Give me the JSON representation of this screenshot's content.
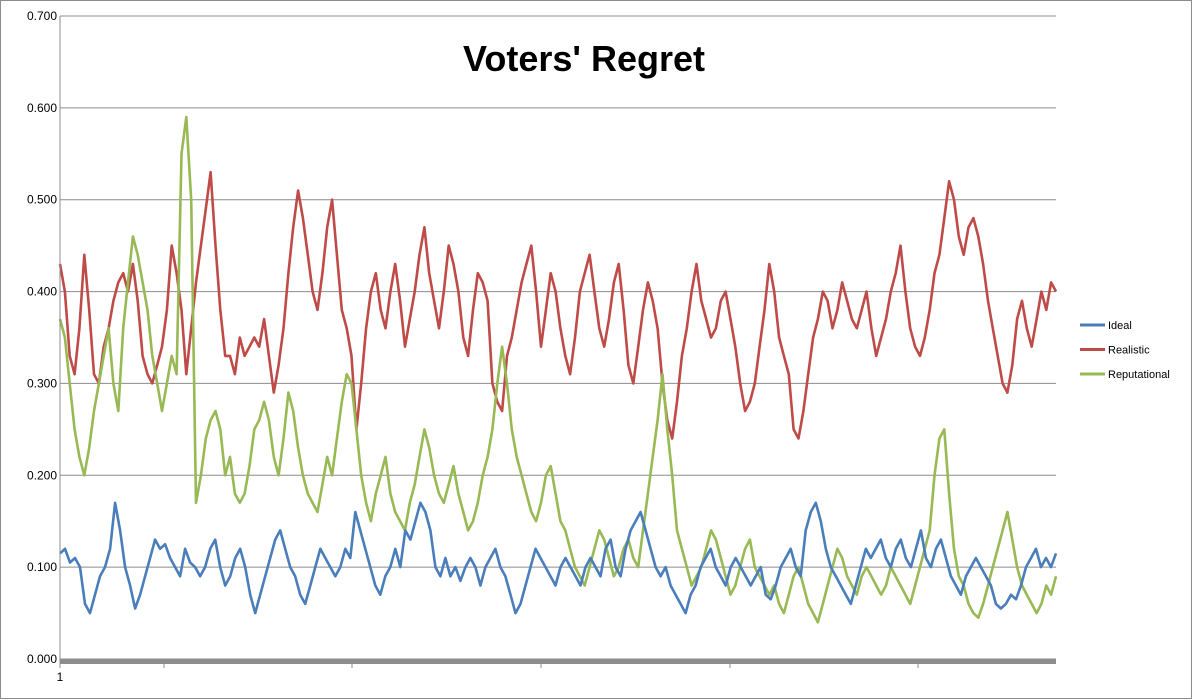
{
  "chart_data": {
    "type": "line",
    "title": "Voters' Regret",
    "xlabel": "",
    "ylabel": "",
    "ylim": [
      0,
      0.7
    ],
    "yticks": [
      "0.000",
      "0.100",
      "0.200",
      "0.300",
      "0.400",
      "0.500",
      "0.600",
      "0.700"
    ],
    "x_first_label": "1",
    "grid": "horizontal",
    "legend_position": "right",
    "n_points": 200,
    "series": [
      {
        "name": "Ideal",
        "color": "#4a7ebb",
        "values": [
          0.115,
          0.12,
          0.105,
          0.11,
          0.1,
          0.06,
          0.05,
          0.07,
          0.09,
          0.1,
          0.12,
          0.17,
          0.14,
          0.1,
          0.08,
          0.055,
          0.07,
          0.09,
          0.11,
          0.13,
          0.12,
          0.125,
          0.11,
          0.1,
          0.09,
          0.12,
          0.105,
          0.1,
          0.09,
          0.1,
          0.12,
          0.13,
          0.1,
          0.08,
          0.09,
          0.11,
          0.12,
          0.1,
          0.07,
          0.05,
          0.07,
          0.09,
          0.11,
          0.13,
          0.14,
          0.12,
          0.1,
          0.09,
          0.07,
          0.06,
          0.08,
          0.1,
          0.12,
          0.11,
          0.1,
          0.09,
          0.1,
          0.12,
          0.11,
          0.16,
          0.14,
          0.12,
          0.1,
          0.08,
          0.07,
          0.09,
          0.1,
          0.12,
          0.1,
          0.14,
          0.13,
          0.15,
          0.17,
          0.16,
          0.14,
          0.1,
          0.09,
          0.11,
          0.09,
          0.1,
          0.085,
          0.1,
          0.11,
          0.1,
          0.08,
          0.1,
          0.11,
          0.12,
          0.1,
          0.09,
          0.07,
          0.05,
          0.06,
          0.08,
          0.1,
          0.12,
          0.11,
          0.1,
          0.09,
          0.08,
          0.1,
          0.11,
          0.1,
          0.09,
          0.08,
          0.1,
          0.11,
          0.1,
          0.09,
          0.12,
          0.13,
          0.1,
          0.09,
          0.12,
          0.14,
          0.15,
          0.16,
          0.14,
          0.12,
          0.1,
          0.09,
          0.1,
          0.08,
          0.07,
          0.06,
          0.05,
          0.07,
          0.08,
          0.1,
          0.11,
          0.12,
          0.1,
          0.09,
          0.08,
          0.1,
          0.11,
          0.1,
          0.09,
          0.08,
          0.09,
          0.1,
          0.07,
          0.065,
          0.08,
          0.1,
          0.11,
          0.12,
          0.1,
          0.09,
          0.14,
          0.16,
          0.17,
          0.15,
          0.12,
          0.1,
          0.09,
          0.08,
          0.07,
          0.06,
          0.08,
          0.1,
          0.12,
          0.11,
          0.12,
          0.13,
          0.11,
          0.1,
          0.12,
          0.13,
          0.11,
          0.1,
          0.12,
          0.14,
          0.11,
          0.1,
          0.12,
          0.13,
          0.11,
          0.09,
          0.08,
          0.07,
          0.09,
          0.1,
          0.11,
          0.1,
          0.09,
          0.08,
          0.06,
          0.055,
          0.06,
          0.07,
          0.065,
          0.08,
          0.1,
          0.11,
          0.12,
          0.1,
          0.11,
          0.1,
          0.115
        ]
      },
      {
        "name": "Realistic",
        "color": "#be4b48",
        "values": [
          0.43,
          0.4,
          0.33,
          0.31,
          0.36,
          0.44,
          0.38,
          0.31,
          0.3,
          0.34,
          0.36,
          0.39,
          0.41,
          0.42,
          0.4,
          0.43,
          0.39,
          0.33,
          0.31,
          0.3,
          0.32,
          0.34,
          0.38,
          0.45,
          0.42,
          0.38,
          0.31,
          0.36,
          0.41,
          0.45,
          0.49,
          0.53,
          0.45,
          0.38,
          0.33,
          0.33,
          0.31,
          0.35,
          0.33,
          0.34,
          0.35,
          0.34,
          0.37,
          0.33,
          0.29,
          0.32,
          0.36,
          0.42,
          0.47,
          0.51,
          0.48,
          0.44,
          0.4,
          0.38,
          0.42,
          0.47,
          0.5,
          0.44,
          0.38,
          0.36,
          0.33,
          0.25,
          0.3,
          0.36,
          0.4,
          0.42,
          0.38,
          0.36,
          0.4,
          0.43,
          0.39,
          0.34,
          0.37,
          0.4,
          0.44,
          0.47,
          0.42,
          0.39,
          0.36,
          0.4,
          0.45,
          0.43,
          0.4,
          0.35,
          0.33,
          0.38,
          0.42,
          0.41,
          0.39,
          0.3,
          0.28,
          0.27,
          0.33,
          0.35,
          0.38,
          0.41,
          0.43,
          0.45,
          0.4,
          0.34,
          0.38,
          0.42,
          0.4,
          0.36,
          0.33,
          0.31,
          0.35,
          0.4,
          0.42,
          0.44,
          0.4,
          0.36,
          0.34,
          0.37,
          0.41,
          0.43,
          0.38,
          0.32,
          0.3,
          0.34,
          0.38,
          0.41,
          0.39,
          0.36,
          0.3,
          0.26,
          0.24,
          0.28,
          0.33,
          0.36,
          0.4,
          0.43,
          0.39,
          0.37,
          0.35,
          0.36,
          0.39,
          0.4,
          0.37,
          0.34,
          0.3,
          0.27,
          0.28,
          0.3,
          0.34,
          0.38,
          0.43,
          0.4,
          0.35,
          0.33,
          0.31,
          0.25,
          0.24,
          0.27,
          0.31,
          0.35,
          0.37,
          0.4,
          0.39,
          0.36,
          0.38,
          0.41,
          0.39,
          0.37,
          0.36,
          0.38,
          0.4,
          0.36,
          0.33,
          0.35,
          0.37,
          0.4,
          0.42,
          0.45,
          0.4,
          0.36,
          0.34,
          0.33,
          0.35,
          0.38,
          0.42,
          0.44,
          0.48,
          0.52,
          0.5,
          0.46,
          0.44,
          0.47,
          0.48,
          0.46,
          0.43,
          0.39,
          0.36,
          0.33,
          0.3,
          0.29,
          0.32,
          0.37,
          0.39,
          0.36,
          0.34,
          0.37,
          0.4,
          0.38,
          0.41,
          0.4
        ]
      },
      {
        "name": "Reputational",
        "color": "#98b954",
        "values": [
          0.37,
          0.35,
          0.3,
          0.25,
          0.22,
          0.2,
          0.23,
          0.27,
          0.3,
          0.33,
          0.36,
          0.3,
          0.27,
          0.36,
          0.41,
          0.46,
          0.44,
          0.41,
          0.38,
          0.33,
          0.3,
          0.27,
          0.3,
          0.33,
          0.31,
          0.55,
          0.59,
          0.5,
          0.17,
          0.2,
          0.24,
          0.26,
          0.27,
          0.25,
          0.2,
          0.22,
          0.18,
          0.17,
          0.18,
          0.21,
          0.25,
          0.26,
          0.28,
          0.26,
          0.22,
          0.2,
          0.24,
          0.29,
          0.27,
          0.23,
          0.2,
          0.18,
          0.17,
          0.16,
          0.19,
          0.22,
          0.2,
          0.24,
          0.28,
          0.31,
          0.3,
          0.25,
          0.2,
          0.17,
          0.15,
          0.18,
          0.2,
          0.22,
          0.18,
          0.16,
          0.15,
          0.14,
          0.17,
          0.19,
          0.22,
          0.25,
          0.23,
          0.2,
          0.18,
          0.17,
          0.19,
          0.21,
          0.18,
          0.16,
          0.14,
          0.15,
          0.17,
          0.2,
          0.22,
          0.25,
          0.3,
          0.34,
          0.3,
          0.25,
          0.22,
          0.2,
          0.18,
          0.16,
          0.15,
          0.17,
          0.2,
          0.21,
          0.18,
          0.15,
          0.14,
          0.12,
          0.1,
          0.09,
          0.08,
          0.1,
          0.12,
          0.14,
          0.13,
          0.11,
          0.09,
          0.1,
          0.12,
          0.13,
          0.11,
          0.1,
          0.14,
          0.18,
          0.22,
          0.26,
          0.31,
          0.25,
          0.2,
          0.14,
          0.12,
          0.1,
          0.08,
          0.09,
          0.1,
          0.12,
          0.14,
          0.13,
          0.11,
          0.09,
          0.07,
          0.08,
          0.1,
          0.12,
          0.13,
          0.1,
          0.09,
          0.08,
          0.07,
          0.08,
          0.06,
          0.05,
          0.07,
          0.09,
          0.1,
          0.08,
          0.06,
          0.05,
          0.04,
          0.06,
          0.08,
          0.1,
          0.12,
          0.11,
          0.09,
          0.08,
          0.07,
          0.09,
          0.1,
          0.09,
          0.08,
          0.07,
          0.08,
          0.1,
          0.09,
          0.08,
          0.07,
          0.06,
          0.08,
          0.1,
          0.12,
          0.14,
          0.2,
          0.24,
          0.25,
          0.18,
          0.12,
          0.09,
          0.08,
          0.06,
          0.05,
          0.045,
          0.06,
          0.08,
          0.1,
          0.12,
          0.14,
          0.16,
          0.13,
          0.1,
          0.08,
          0.07,
          0.06,
          0.05,
          0.06,
          0.08,
          0.07,
          0.09
        ]
      }
    ]
  }
}
